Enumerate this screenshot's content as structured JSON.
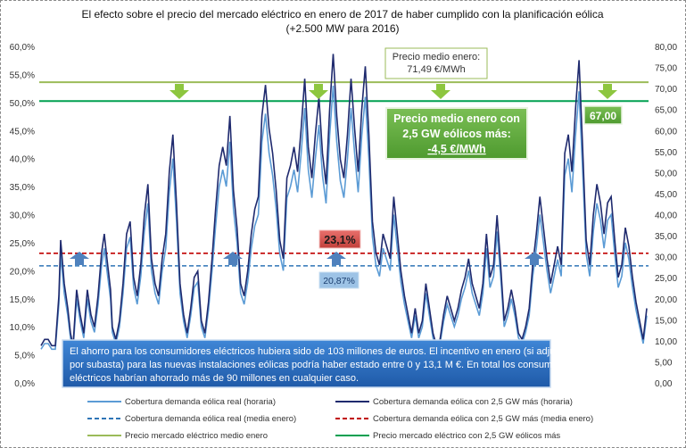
{
  "chart_data": {
    "type": "line",
    "title": "El efecto sobre el precio del  mercado eléctrico en enero de 2017 de haber cumplido con la planificación eólica",
    "subtitle": "(+2.500 MW para 2016)",
    "y_left_ticks": [
      "60,0%",
      "55,0%",
      "50,0%",
      "45,0%",
      "40,0%",
      "35,0%",
      "30,0%",
      "25,0%",
      "20,0%",
      "15,0%",
      "10,0%",
      "5,0%",
      "0,0%"
    ],
    "y_right_ticks": [
      "80,00",
      "75,00",
      "70,00",
      "65,00",
      "60,00",
      "55,00",
      "50,00",
      "45,00",
      "40,00",
      "35,00",
      "30,00",
      "25,00",
      "20,00",
      "15,00",
      "10,00",
      "5,00",
      "0,00"
    ],
    "y_left_range": [
      0,
      60
    ],
    "y_right_range": [
      0,
      80
    ],
    "series": [
      {
        "name": "Cobertura demanda eólica real (horaria)",
        "color": "#5b9bd5",
        "axis": "left",
        "unit": "%",
        "keypoints": [
          [
            0,
            6
          ],
          [
            4,
            7
          ],
          [
            8,
            7
          ],
          [
            12,
            6
          ],
          [
            16,
            6
          ],
          [
            20,
            14
          ],
          [
            22,
            23
          ],
          [
            26,
            16
          ],
          [
            30,
            12
          ],
          [
            33,
            8
          ],
          [
            36,
            6
          ],
          [
            40,
            15
          ],
          [
            44,
            11
          ],
          [
            48,
            8
          ],
          [
            52,
            15
          ],
          [
            56,
            11
          ],
          [
            60,
            9
          ],
          [
            64,
            14
          ],
          [
            68,
            21
          ],
          [
            71,
            24
          ],
          [
            74,
            20
          ],
          [
            78,
            15
          ],
          [
            80,
            9
          ],
          [
            84,
            7
          ],
          [
            88,
            10
          ],
          [
            92,
            16
          ],
          [
            96,
            24
          ],
          [
            100,
            26
          ],
          [
            104,
            17
          ],
          [
            108,
            14
          ],
          [
            112,
            19
          ],
          [
            116,
            27
          ],
          [
            120,
            32
          ],
          [
            124,
            20
          ],
          [
            128,
            16
          ],
          [
            132,
            14
          ],
          [
            136,
            20
          ],
          [
            140,
            24
          ],
          [
            144,
            34
          ],
          [
            148,
            40
          ],
          [
            152,
            29
          ],
          [
            156,
            16
          ],
          [
            160,
            11
          ],
          [
            164,
            8
          ],
          [
            168,
            12
          ],
          [
            172,
            17
          ],
          [
            176,
            18
          ],
          [
            180,
            10
          ],
          [
            184,
            8
          ],
          [
            188,
            13
          ],
          [
            192,
            20
          ],
          [
            196,
            28
          ],
          [
            200,
            35
          ],
          [
            204,
            38
          ],
          [
            208,
            35
          ],
          [
            212,
            43
          ],
          [
            216,
            31
          ],
          [
            220,
            25
          ],
          [
            224,
            16
          ],
          [
            228,
            14
          ],
          [
            232,
            18
          ],
          [
            236,
            24
          ],
          [
            240,
            28
          ],
          [
            244,
            30
          ],
          [
            248,
            43
          ],
          [
            252,
            48
          ],
          [
            256,
            41
          ],
          [
            260,
            37
          ],
          [
            264,
            31
          ],
          [
            268,
            23
          ],
          [
            272,
            20
          ],
          [
            276,
            33
          ],
          [
            280,
            35
          ],
          [
            284,
            38
          ],
          [
            288,
            34
          ],
          [
            292,
            41
          ],
          [
            296,
            49
          ],
          [
            300,
            38
          ],
          [
            304,
            33
          ],
          [
            308,
            40
          ],
          [
            312,
            46
          ],
          [
            316,
            37
          ],
          [
            320,
            32
          ],
          [
            324,
            44
          ],
          [
            328,
            53
          ],
          [
            332,
            43
          ],
          [
            336,
            36
          ],
          [
            340,
            33
          ],
          [
            344,
            40
          ],
          [
            348,
            49
          ],
          [
            352,
            41
          ],
          [
            356,
            34
          ],
          [
            360,
            44
          ],
          [
            364,
            51
          ],
          [
            368,
            40
          ],
          [
            372,
            26
          ],
          [
            376,
            21
          ],
          [
            380,
            19
          ],
          [
            384,
            24
          ],
          [
            388,
            22
          ],
          [
            392,
            20
          ],
          [
            396,
            30
          ],
          [
            400,
            24
          ],
          [
            404,
            18
          ],
          [
            408,
            14
          ],
          [
            412,
            11
          ],
          [
            416,
            8
          ],
          [
            420,
            12
          ],
          [
            424,
            8
          ],
          [
            428,
            10
          ],
          [
            432,
            16
          ],
          [
            436,
            12
          ],
          [
            440,
            8
          ],
          [
            444,
            6
          ],
          [
            448,
            7
          ],
          [
            452,
            11
          ],
          [
            456,
            14
          ],
          [
            460,
            12
          ],
          [
            464,
            10
          ],
          [
            468,
            12
          ],
          [
            472,
            15
          ],
          [
            476,
            17
          ],
          [
            480,
            20
          ],
          [
            484,
            16
          ],
          [
            488,
            14
          ],
          [
            492,
            12
          ],
          [
            496,
            16
          ],
          [
            500,
            24
          ],
          [
            504,
            17
          ],
          [
            508,
            19
          ],
          [
            512,
            27
          ],
          [
            516,
            19
          ],
          [
            520,
            10
          ],
          [
            524,
            12
          ],
          [
            528,
            15
          ],
          [
            532,
            12
          ],
          [
            536,
            8
          ],
          [
            540,
            7
          ],
          [
            544,
            9
          ],
          [
            548,
            12
          ],
          [
            552,
            19
          ],
          [
            556,
            24
          ],
          [
            560,
            30
          ],
          [
            564,
            25
          ],
          [
            568,
            20
          ],
          [
            572,
            16
          ],
          [
            576,
            19
          ],
          [
            580,
            22
          ],
          [
            584,
            19
          ],
          [
            588,
            37
          ],
          [
            592,
            40
          ],
          [
            596,
            34
          ],
          [
            600,
            44
          ],
          [
            604,
            52
          ],
          [
            608,
            38
          ],
          [
            612,
            23
          ],
          [
            616,
            19
          ],
          [
            620,
            27
          ],
          [
            624,
            32
          ],
          [
            628,
            29
          ],
          [
            632,
            24
          ],
          [
            636,
            29
          ],
          [
            640,
            30
          ],
          [
            644,
            23
          ],
          [
            648,
            17
          ],
          [
            652,
            19
          ],
          [
            656,
            25
          ],
          [
            660,
            22
          ],
          [
            664,
            17
          ],
          [
            668,
            13
          ],
          [
            672,
            10
          ],
          [
            676,
            7
          ],
          [
            680,
            12
          ]
        ]
      },
      {
        "name": "Cobertura demanda eólica con 2,5 GW más (horaria)",
        "color": "#1f2a6e",
        "axis": "left",
        "unit": "%"
      },
      {
        "name": "Cobertura demanda eólica real (media enero)",
        "color": "#2e75b6",
        "axis": "left",
        "value": 20.87,
        "label": "20,87%"
      },
      {
        "name": "Cobertura demanda eólica con 2,5 GW más (media enero)",
        "color": "#c00000",
        "axis": "left",
        "value": 23.1,
        "label": "23,1%"
      },
      {
        "name": "Precio mercado eléctrico medio enero",
        "color": "#9bbb59",
        "axis": "right",
        "value": 71.49
      },
      {
        "name": "Precio mercado eléctrico con 2,5 GW eólicos más",
        "color": "#00a050",
        "axis": "right",
        "value": 67.0
      }
    ],
    "annotations": {
      "price_box_line1": "Precio medio enero:",
      "price_box_line2": "71,49 €/MWh",
      "green_box_line1": "Precio medio enero con",
      "green_box_line2": "2,5 GW eólicos más:",
      "green_box_line3": "-4,5 €/MWh",
      "green_value_label": "67,00",
      "info_box_lines": [
        "El ahorro para los consumidores eléctricos hubiera sido de 103 millones de euros. El incentivo en enero (si adjudicado",
        "por subasta) para las nuevas instalaciones eólicas podría haber estado entre 0 y 13,1 M €. En total los consumidores",
        "eléctricos habrían ahorrado más de 90 millones en cualquier caso."
      ]
    },
    "legend_placement": "bottom",
    "grid": false,
    "colors": {
      "arrow_down": "#8dc63f",
      "arrow_up": "#4f81bd",
      "green_box": "#66a944",
      "info_box": "#2d6fc0",
      "red_label": "#d9534f",
      "avg_label": "#9dc3e6"
    }
  }
}
